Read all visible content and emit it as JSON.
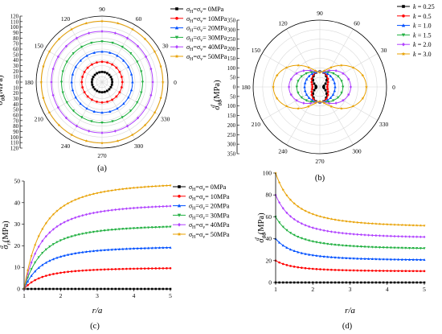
{
  "charts": [
    {
      "type": "polar",
      "panel_label": "(a)",
      "ylabel": "σθθ^d (MPa)",
      "rticks": [
        0,
        10,
        20,
        30,
        40,
        50,
        60,
        70,
        80,
        90,
        100,
        110,
        120
      ],
      "angle_ticks": [
        0,
        30,
        60,
        90,
        120,
        150,
        180,
        210,
        240,
        270,
        300,
        330
      ],
      "series": [
        {
          "name": "σ_H=σ_v= 0MPa",
          "color": "#000000",
          "marker": "square",
          "r": 20
        },
        {
          "name": "σ_H=σ_v= 10MPa",
          "color": "#ff0000",
          "marker": "circle",
          "r": 40
        },
        {
          "name": "σ_H=σ_v= 20MPa",
          "color": "#0050ff",
          "marker": "triangle",
          "r": 60
        },
        {
          "name": "σ_H=σ_v= 30MPa",
          "color": "#20b040",
          "marker": "tri-down",
          "r": 80
        },
        {
          "name": "σ_H=σ_v= 40MPa",
          "color": "#b040ff",
          "marker": "diamond",
          "r": 100
        },
        {
          "name": "σ_H=σ_v= 50MPa",
          "color": "#e8a000",
          "marker": "star",
          "r": 120
        }
      ]
    },
    {
      "type": "polar",
      "panel_label": "(b)",
      "ylabel": "σθθ^d (MPa)",
      "rticks": [
        0,
        50,
        100,
        150,
        200,
        250,
        300,
        350
      ],
      "angle_ticks": [
        0,
        30,
        60,
        90,
        120,
        150,
        180,
        210,
        240,
        270,
        300,
        330
      ],
      "series": [
        {
          "name": "k = 0.25",
          "color": "#000000",
          "marker": "square",
          "k": 0.25
        },
        {
          "name": "k = 0.5",
          "color": "#ff0000",
          "marker": "circle",
          "k": 0.5
        },
        {
          "name": "k = 1.0",
          "color": "#0050ff",
          "marker": "triangle",
          "k": 1.0
        },
        {
          "name": "k = 1.5",
          "color": "#20b040",
          "marker": "tri-down",
          "k": 1.5
        },
        {
          "name": "k = 2.0",
          "color": "#b040ff",
          "marker": "diamond",
          "k": 2.0
        },
        {
          "name": "k = 3.0",
          "color": "#e8a000",
          "marker": "star",
          "k": 3.0
        }
      ]
    },
    {
      "type": "line",
      "panel_label": "(c)",
      "xlabel": "r/a",
      "ylabel": "σrr^d (MPa)",
      "xlim": [
        1,
        5
      ],
      "ylim": [
        0,
        50
      ],
      "xticks": [
        1,
        2,
        3,
        4,
        5
      ],
      "yticks": [
        0,
        10,
        20,
        30,
        40,
        50
      ],
      "series": [
        {
          "name": "σ_H=σ_v= 0MPa",
          "color": "#000000",
          "marker": "square",
          "s": 0
        },
        {
          "name": "σ_H=σ_v= 10MPa",
          "color": "#ff0000",
          "marker": "circle",
          "s": 10
        },
        {
          "name": "σ_H=σ_v= 20MPa",
          "color": "#0050ff",
          "marker": "triangle",
          "s": 20
        },
        {
          "name": "σ_H=σ_v= 30MPa",
          "color": "#20b040",
          "marker": "tri-down",
          "s": 30
        },
        {
          "name": "σ_H=σ_v= 40MPa",
          "color": "#b040ff",
          "marker": "diamond",
          "s": 40
        },
        {
          "name": "σ_H=σ_v= 50MPa",
          "color": "#e8a000",
          "marker": "star",
          "s": 50
        }
      ]
    },
    {
      "type": "line",
      "panel_label": "(d)",
      "xlabel": "r/a",
      "ylabel": "σθθ^d (MPa)",
      "xlim": [
        1,
        5
      ],
      "ylim": [
        0,
        100
      ],
      "xticks": [
        1,
        2,
        3,
        4,
        5
      ],
      "yticks": [
        0,
        20,
        40,
        60,
        80,
        100
      ],
      "series": [
        {
          "name": "σ_H=σ_v= 0MPa",
          "color": "#000000",
          "marker": "square",
          "s": 0
        },
        {
          "name": "σ_H=σ_v= 10MPa",
          "color": "#ff0000",
          "marker": "circle",
          "s": 10
        },
        {
          "name": "σ_H=σ_v= 20MPa",
          "color": "#0050ff",
          "marker": "triangle",
          "s": 20
        },
        {
          "name": "σ_H=σ_v= 30MPa",
          "color": "#20b040",
          "marker": "tri-down",
          "s": 30
        },
        {
          "name": "σ_H=σ_v= 40MPa",
          "color": "#b040ff",
          "marker": "diamond",
          "s": 40
        },
        {
          "name": "σ_H=σ_v= 50MPa",
          "color": "#e8a000",
          "marker": "star",
          "s": 50
        }
      ]
    }
  ]
}
